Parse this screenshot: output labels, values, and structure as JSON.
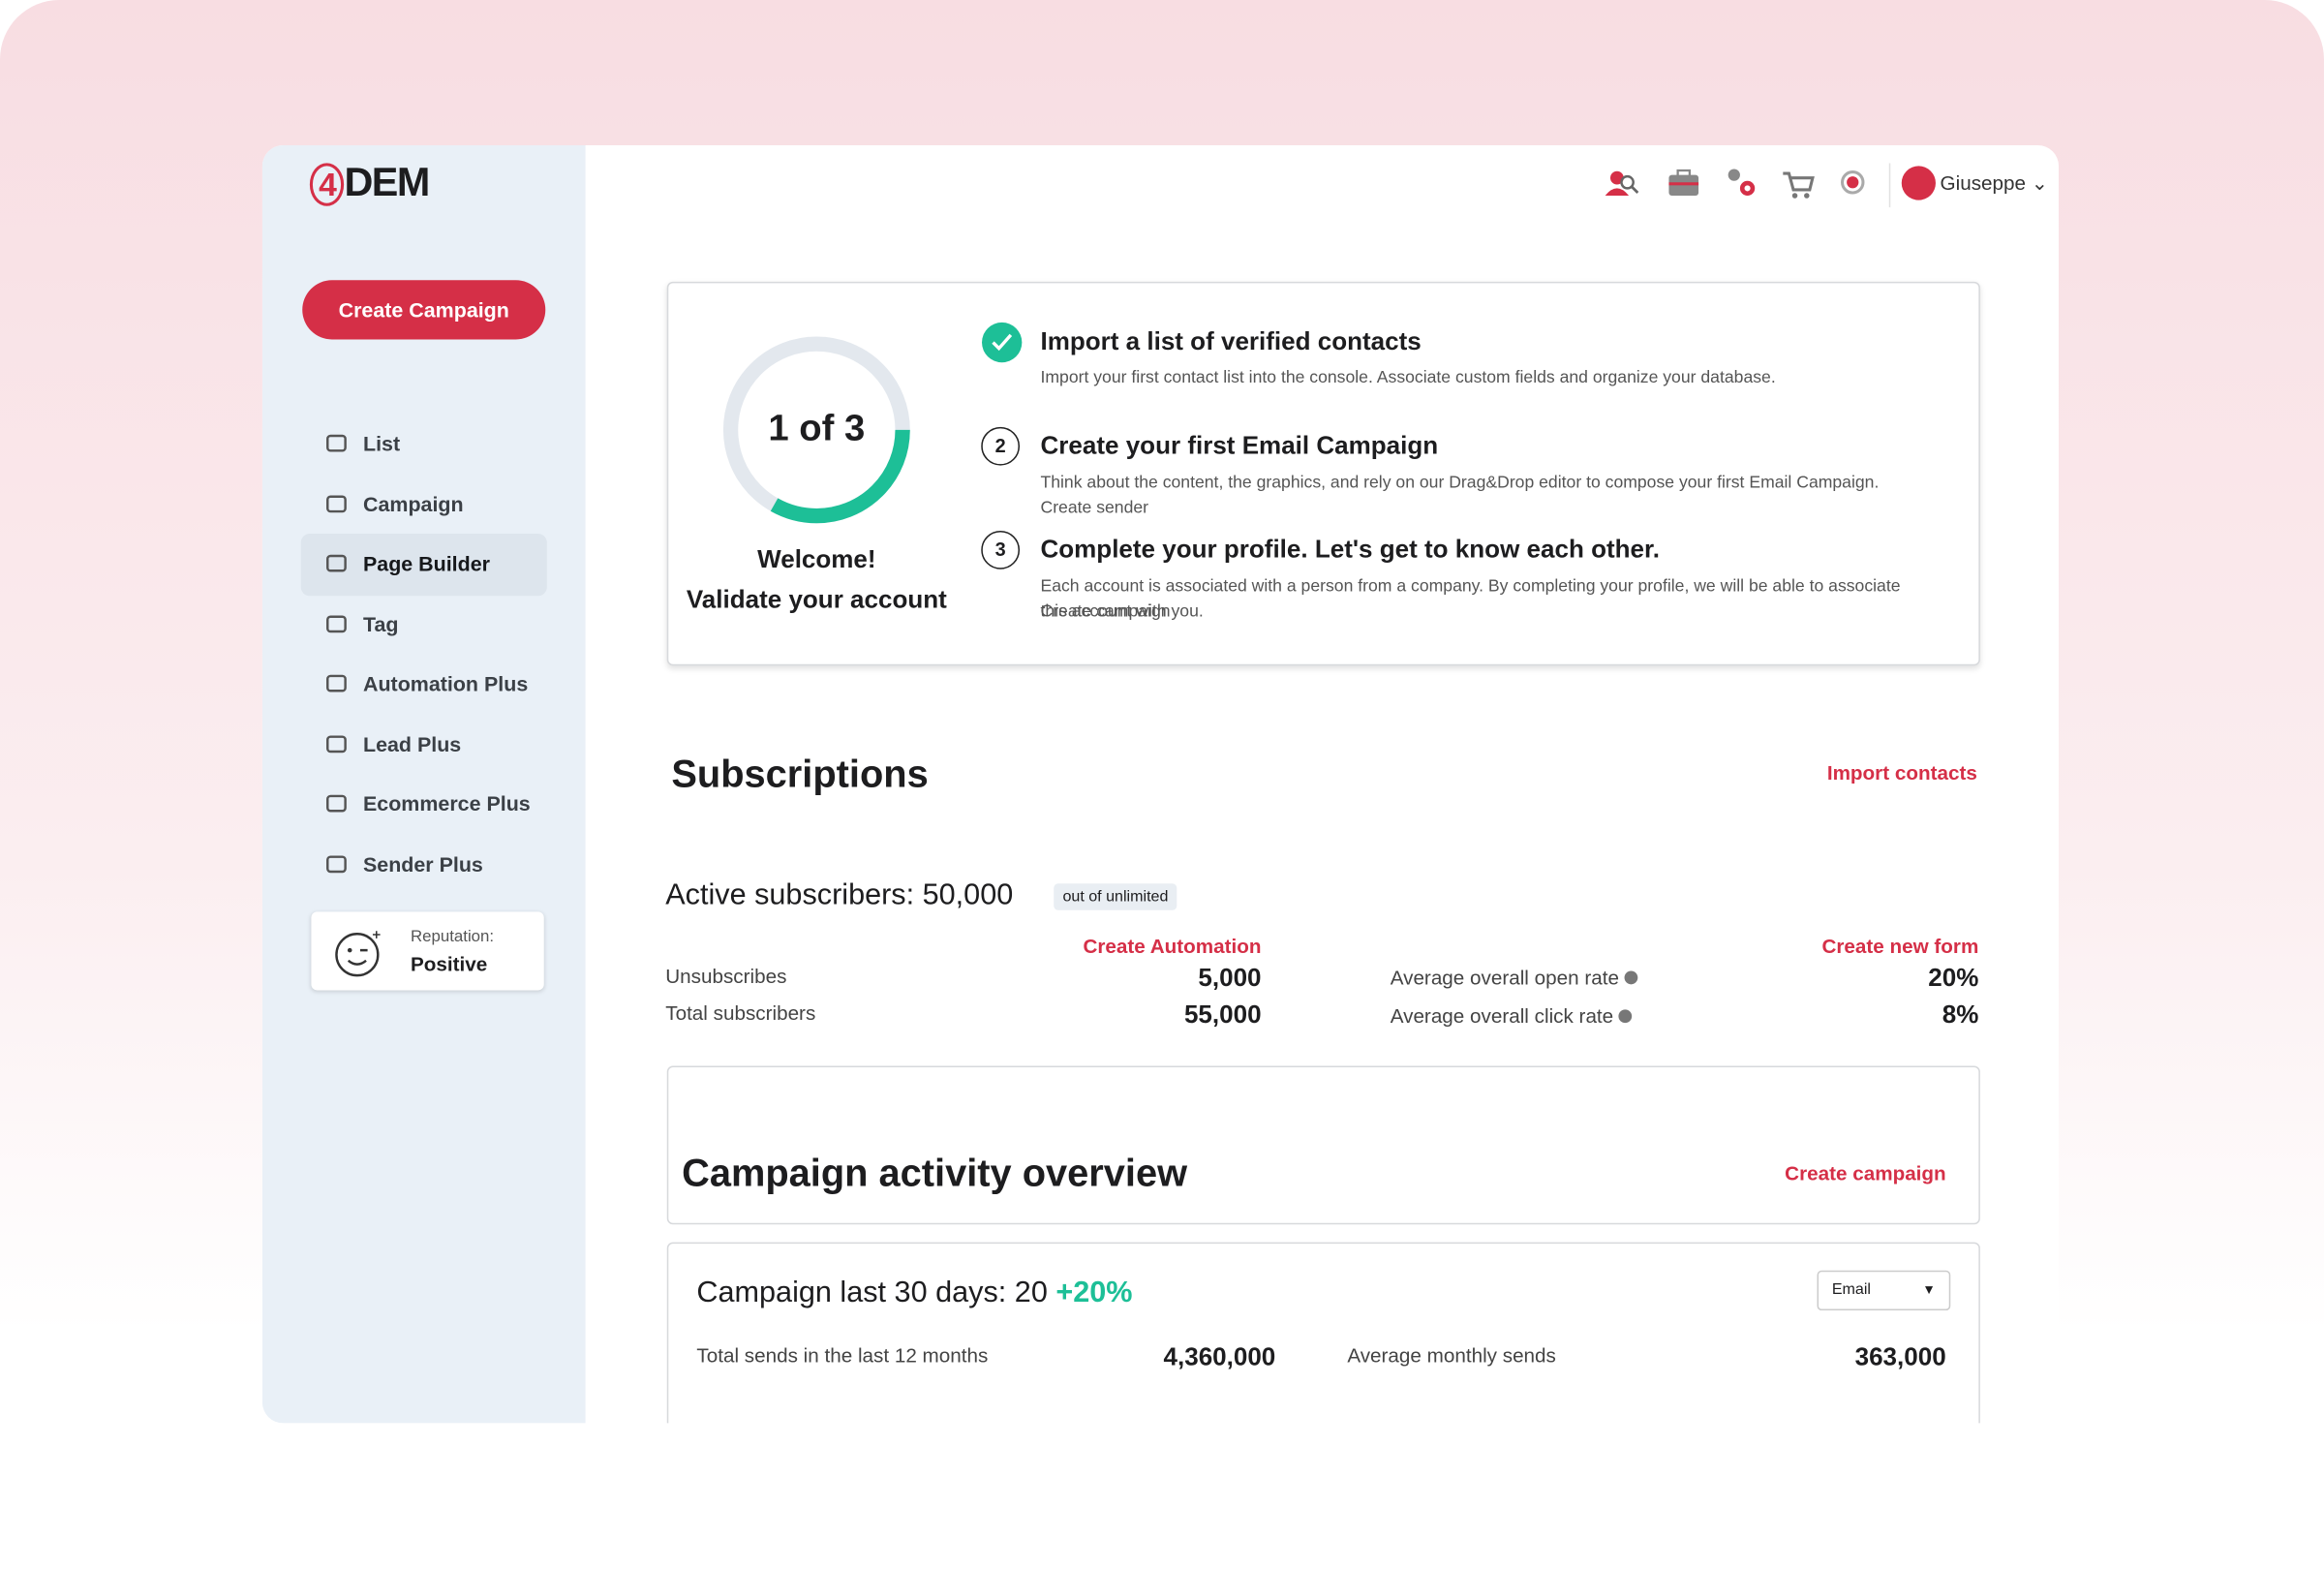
{
  "logo": {
    "mark": "4",
    "name": "DEM"
  },
  "header": {
    "user": "Giuseppe"
  },
  "sidebar": {
    "cta": "Create Campaign",
    "nav": [
      "List",
      "Campaign",
      "Page Builder",
      "Tag",
      "Automation Plus",
      "Lead Plus",
      "Ecommerce Plus",
      "Sender Plus"
    ],
    "reputation": {
      "label": "Reputation:",
      "value": "Positive"
    }
  },
  "onboarding": {
    "progress": "1 of 3",
    "welcome": "Welcome!",
    "validate": "Validate your account",
    "steps": [
      {
        "title": "Import a list of verified contacts",
        "text": "Import your first contact list into the console. Associate custom fields and organize your database."
      },
      {
        "number": 2,
        "title": "Create your first Email Campaign",
        "text": "Think about the content, the graphics, and rely on our Drag&Drop editor to compose your first Email Campaign.",
        "link": "Create sender"
      },
      {
        "number": 3,
        "title": "Complete your profile. Let's get to know each other.",
        "text": "Each account is associated with a person from a company. By completing your profile, we will be able to associate this account with you.",
        "link": "Create campaign"
      }
    ]
  },
  "subscriptions": {
    "title": "Subscriptions",
    "action": "Import contacts",
    "active_label": "Active subscribers: 50,000",
    "badge": "out of unlimited",
    "create_automation": "Create Automation",
    "create_form": "Create new form",
    "left_stats": [
      {
        "label": "Unsubscribes",
        "value": "5,000"
      },
      {
        "label": "Total subscribers",
        "value": "55,000"
      }
    ],
    "right_stats": [
      {
        "label": "Average overall open rate",
        "value": "20%"
      },
      {
        "label": "Average overall click rate",
        "value": "8%"
      }
    ]
  },
  "campaign": {
    "title": "Campaign activity overview",
    "action": "Create campaign",
    "last30_label": "Campaign last 30 days: 20",
    "change": "+20%",
    "select": "Email",
    "stats": [
      {
        "label": "Total sends in the last 12 months",
        "value": "4,360,000"
      },
      {
        "label": "Average monthly sends",
        "value": "363,000"
      }
    ]
  }
}
